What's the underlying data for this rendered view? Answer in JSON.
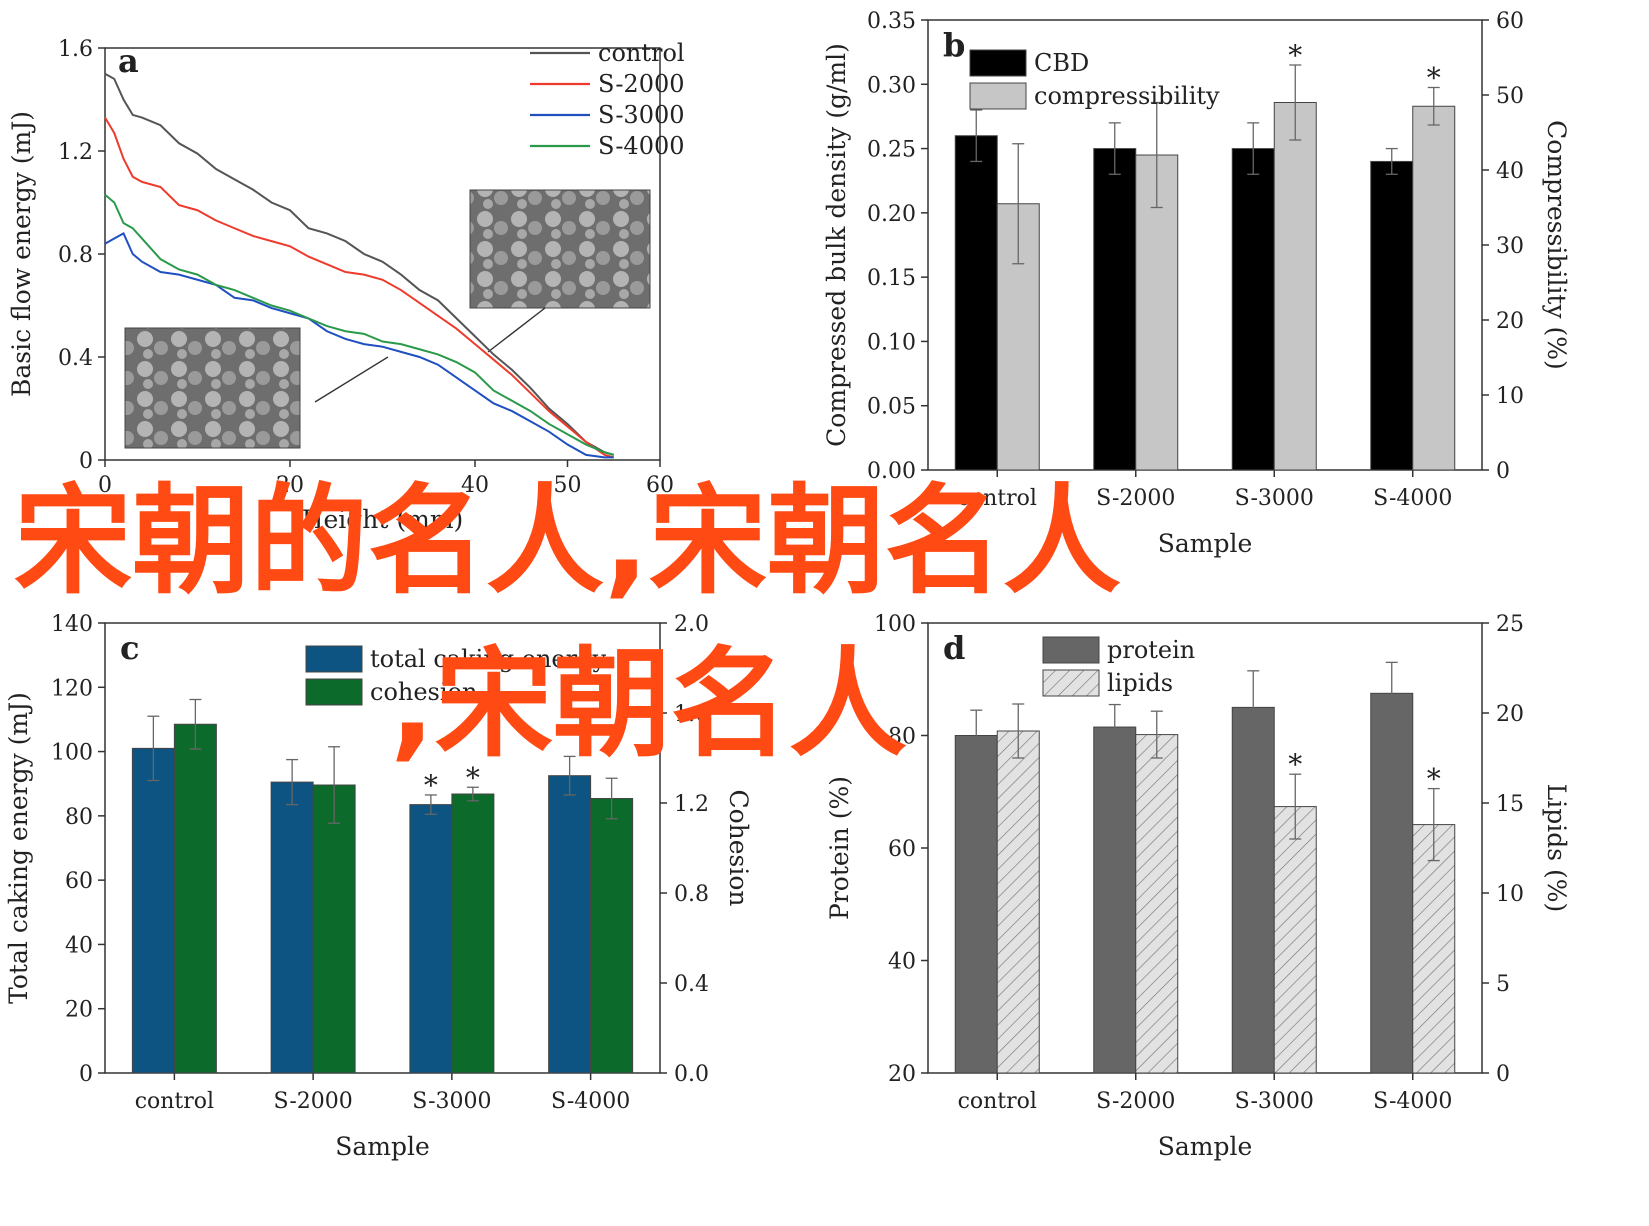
{
  "chart_data": [
    {
      "panel": "a",
      "type": "line",
      "xlabel": "Height (mm)",
      "ylabel": "Basic flow energy (mJ)",
      "xlim": [
        0,
        60
      ],
      "ylim": [
        0,
        1.6
      ],
      "xticks": [
        "0",
        "20",
        "40",
        "50",
        "60"
      ],
      "yticks": [
        "0",
        "0.4",
        "0.8",
        "1.2",
        "1.6"
      ],
      "legend_position": "top-right",
      "series": [
        {
          "name": "control",
          "color": "#555555",
          "x": [
            0,
            1,
            2,
            3,
            4,
            6,
            8,
            10,
            12,
            14,
            16,
            18,
            20,
            22,
            24,
            26,
            28,
            30,
            32,
            34,
            36,
            38,
            40,
            42,
            44,
            46,
            48,
            50,
            52,
            54,
            55
          ],
          "y": [
            1.5,
            1.48,
            1.4,
            1.34,
            1.33,
            1.3,
            1.23,
            1.19,
            1.13,
            1.09,
            1.05,
            1.0,
            0.97,
            0.9,
            0.88,
            0.85,
            0.8,
            0.77,
            0.72,
            0.66,
            0.62,
            0.55,
            0.48,
            0.41,
            0.35,
            0.28,
            0.2,
            0.14,
            0.07,
            0.03,
            0.02
          ]
        },
        {
          "name": "S-2000",
          "color": "#ee3b2c",
          "x": [
            0,
            1,
            2,
            3,
            4,
            6,
            8,
            10,
            12,
            14,
            16,
            18,
            20,
            22,
            24,
            26,
            28,
            30,
            32,
            34,
            36,
            38,
            40,
            42,
            44,
            46,
            48,
            50,
            52,
            54,
            55
          ],
          "y": [
            1.33,
            1.27,
            1.17,
            1.1,
            1.08,
            1.06,
            0.99,
            0.97,
            0.93,
            0.9,
            0.87,
            0.85,
            0.83,
            0.79,
            0.76,
            0.73,
            0.72,
            0.7,
            0.66,
            0.61,
            0.56,
            0.51,
            0.45,
            0.39,
            0.33,
            0.26,
            0.19,
            0.13,
            0.07,
            0.02,
            0.01
          ]
        },
        {
          "name": "S-3000",
          "color": "#1f4fc0",
          "x": [
            0,
            1,
            2,
            3,
            4,
            6,
            8,
            10,
            12,
            14,
            16,
            18,
            20,
            22,
            24,
            26,
            28,
            30,
            32,
            34,
            36,
            38,
            40,
            42,
            44,
            46,
            48,
            50,
            52,
            54,
            55
          ],
          "y": [
            0.84,
            0.86,
            0.88,
            0.8,
            0.77,
            0.73,
            0.72,
            0.7,
            0.68,
            0.63,
            0.62,
            0.59,
            0.57,
            0.55,
            0.5,
            0.47,
            0.45,
            0.44,
            0.42,
            0.4,
            0.37,
            0.32,
            0.27,
            0.22,
            0.19,
            0.15,
            0.11,
            0.06,
            0.02,
            0.01,
            0.01
          ]
        },
        {
          "name": "S-4000",
          "color": "#2a9a4a",
          "x": [
            0,
            1,
            2,
            3,
            4,
            6,
            8,
            10,
            12,
            14,
            16,
            18,
            20,
            22,
            24,
            26,
            28,
            30,
            32,
            34,
            36,
            38,
            40,
            42,
            44,
            46,
            48,
            50,
            52,
            54,
            55
          ],
          "y": [
            1.03,
            1.0,
            0.92,
            0.9,
            0.86,
            0.78,
            0.74,
            0.72,
            0.68,
            0.66,
            0.63,
            0.6,
            0.58,
            0.55,
            0.52,
            0.5,
            0.49,
            0.46,
            0.45,
            0.43,
            0.41,
            0.38,
            0.34,
            0.27,
            0.23,
            0.19,
            0.14,
            0.1,
            0.06,
            0.03,
            0.02
          ]
        }
      ],
      "insets": [
        "SEM micrograph",
        "SEM micrograph"
      ]
    },
    {
      "panel": "b",
      "type": "bar",
      "xlabel": "Sample",
      "ylabel": "Compressed bulk density (g/ml)",
      "y2label": "Compressibility (%)",
      "categories": [
        "control",
        "S-2000",
        "S-3000",
        "S-4000"
      ],
      "ylim": [
        0,
        0.35
      ],
      "y2lim": [
        0,
        60
      ],
      "yticks": [
        "0.00",
        "0.05",
        "0.10",
        "0.15",
        "0.20",
        "0.25",
        "0.30",
        "0.35"
      ],
      "y2ticks": [
        "0",
        "10",
        "20",
        "30",
        "40",
        "50",
        "60"
      ],
      "series": [
        {
          "name": "CBD",
          "axis": "left",
          "color": "#000000",
          "values": [
            0.26,
            0.25,
            0.25,
            0.24
          ],
          "errors": [
            0.02,
            0.02,
            0.02,
            0.01
          ]
        },
        {
          "name": "compressibility",
          "axis": "right",
          "color": "#c6c6c6",
          "values": [
            35.5,
            42,
            49,
            48.5
          ],
          "errors": [
            8,
            7,
            5,
            2.5
          ]
        }
      ],
      "significance": [
        "",
        "",
        "*",
        "*"
      ]
    },
    {
      "panel": "c",
      "type": "bar",
      "xlabel": "Sample",
      "ylabel": "Total caking energy (mJ)",
      "y2label": "Cohesion",
      "categories": [
        "control",
        "S-2000",
        "S-3000",
        "S-4000"
      ],
      "ylim": [
        0,
        140
      ],
      "y2lim": [
        0,
        2.0
      ],
      "yticks": [
        "0",
        "20",
        "40",
        "60",
        "80",
        "100",
        "120",
        "140"
      ],
      "y2ticks": [
        "0.0",
        "0.4",
        "0.8",
        "1.2",
        "1.6",
        "2.0"
      ],
      "series": [
        {
          "name": "total caking energy",
          "axis": "left",
          "color": "#0e5482",
          "values": [
            101,
            90.5,
            83.5,
            92.5
          ],
          "errors": [
            10,
            7,
            3,
            6
          ]
        },
        {
          "name": "cohesion",
          "axis": "right",
          "color": "#0c6a2a",
          "values": [
            1.55,
            1.28,
            1.24,
            1.22
          ],
          "errors": [
            0.11,
            0.17,
            0.03,
            0.09
          ]
        }
      ],
      "significance": [
        "",
        "",
        "* *",
        ""
      ]
    },
    {
      "panel": "d",
      "type": "bar",
      "xlabel": "Sample",
      "ylabel": "Protein (%)",
      "y2label": "Lipids (%)",
      "categories": [
        "control",
        "S-2000",
        "S-3000",
        "S-4000"
      ],
      "ylim": [
        20,
        100
      ],
      "y2lim": [
        0,
        25
      ],
      "yticks": [
        "20",
        "40",
        "60",
        "80",
        "100"
      ],
      "y2ticks": [
        "0",
        "5",
        "10",
        "15",
        "20",
        "25"
      ],
      "series": [
        {
          "name": "protein",
          "axis": "left",
          "color": "#666666",
          "values": [
            80,
            81.5,
            85,
            87.5
          ],
          "errors": [
            4.5,
            4,
            6.5,
            5.5
          ]
        },
        {
          "name": "lipids",
          "axis": "right",
          "color": "#dcdcdc",
          "pattern": "hatched",
          "values": [
            19,
            18.8,
            14.8,
            13.8
          ],
          "errors": [
            1.5,
            1.3,
            1.8,
            2
          ]
        }
      ],
      "significance": [
        "",
        "",
        "*",
        "*"
      ]
    }
  ],
  "watermark": [
    "宋朝的名人,宋朝名人",
    ",宋朝名人"
  ]
}
